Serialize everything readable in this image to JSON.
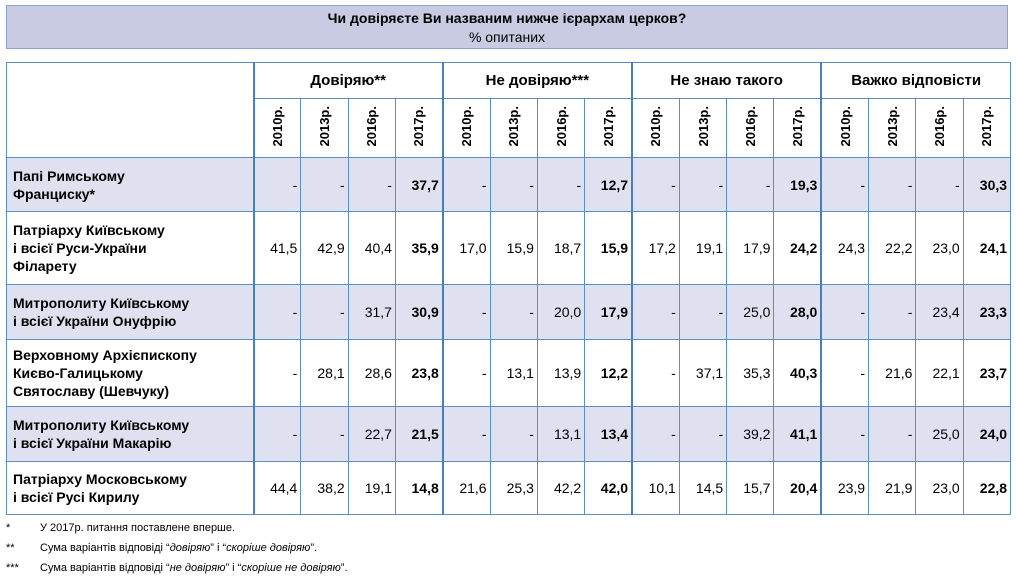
{
  "title": "Чи довіряєте Ви названим нижче ієрархам церков?",
  "subtitle": "% опитаних",
  "groups": [
    "Довіряю**",
    "Не довіряю***",
    "Не знаю такого",
    "Важко відповісти"
  ],
  "years": [
    "2010р.",
    "2013р.",
    "2016р.",
    "2017р."
  ],
  "rows": [
    {
      "label": [
        "Папі Римському",
        "Франциску*"
      ],
      "values": [
        "-",
        "-",
        "-",
        "37,7",
        "-",
        "-",
        "-",
        "12,7",
        "-",
        "-",
        "-",
        "19,3",
        "-",
        "-",
        "-",
        "30,3"
      ]
    },
    {
      "label": [
        "Патріарху Київському",
        "і всієї Руси-України",
        "Філарету"
      ],
      "values": [
        "41,5",
        "42,9",
        "40,4",
        "35,9",
        "17,0",
        "15,9",
        "18,7",
        "15,9",
        "17,2",
        "19,1",
        "17,9",
        "24,2",
        "24,3",
        "22,2",
        "23,0",
        "24,1"
      ]
    },
    {
      "label": [
        "Митрополиту Київському",
        "і всієї України Онуфрію"
      ],
      "values": [
        "-",
        "-",
        "31,7",
        "30,9",
        "-",
        "-",
        "20,0",
        "17,9",
        "-",
        "-",
        "25,0",
        "28,0",
        "-",
        "-",
        "23,4",
        "23,3"
      ]
    },
    {
      "label": [
        "Верховному Архієпископу",
        "Києво-Галицькому",
        "Святославу (Шевчуку)"
      ],
      "values": [
        "-",
        "28,1",
        "28,6",
        "23,8",
        "-",
        "13,1",
        "13,9",
        "12,2",
        "-",
        "37,1",
        "35,3",
        "40,3",
        "-",
        "21,6",
        "22,1",
        "23,7"
      ]
    },
    {
      "label": [
        "Митрополиту Київському",
        "і всієї України Макарію"
      ],
      "values": [
        "-",
        "-",
        "22,7",
        "21,5",
        "-",
        "-",
        "13,1",
        "13,4",
        "-",
        "-",
        "39,2",
        "41,1",
        "-",
        "-",
        "25,0",
        "24,0"
      ]
    },
    {
      "label": [
        "Патріарху Московському",
        "і всієї Русі Кирилу"
      ],
      "values": [
        "44,4",
        "38,2",
        "19,1",
        "14,8",
        "21,6",
        "25,3",
        "42,2",
        "42,0",
        "10,1",
        "14,5",
        "15,7",
        "20,4",
        "23,9",
        "21,9",
        "23,0",
        "22,8"
      ]
    }
  ],
  "footnotes": [
    {
      "mark": "*",
      "parts": [
        "У 2017р. питання поставлене вперше."
      ]
    },
    {
      "mark": "**",
      "parts": [
        "Сума варіантів відповіді “",
        "довіряю",
        "” і “",
        "скоріше довіряю",
        "”."
      ]
    },
    {
      "mark": "***",
      "parts": [
        "Сума варіантів відповіді “",
        "не довіряю",
        "” і “",
        "скоріше не довіряю",
        "”."
      ]
    }
  ]
}
